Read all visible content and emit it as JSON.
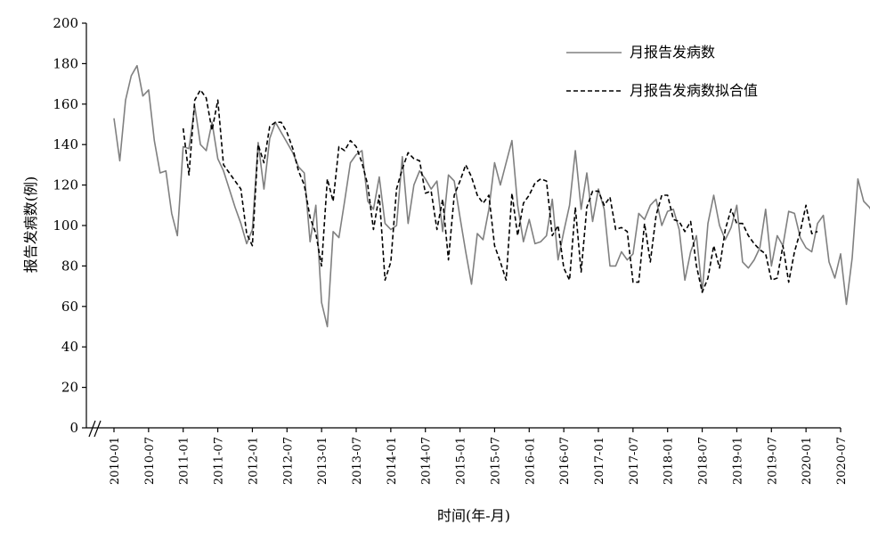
{
  "chart_data": {
    "type": "line",
    "xlabel": "时间(年-月)",
    "ylabel": "报告发病数(例)",
    "ylim": [
      0,
      200
    ],
    "yticks": [
      0,
      20,
      40,
      60,
      80,
      100,
      120,
      140,
      160,
      180,
      200
    ],
    "xticks": [
      "2010-01",
      "2010-07",
      "2011-01",
      "2011-07",
      "2012-01",
      "2012-07",
      "2013-01",
      "2013-07",
      "2014-01",
      "2014-07",
      "2015-01",
      "2015-07",
      "2016-01",
      "2016-07",
      "2017-01",
      "2017-07",
      "2018-01",
      "2018-07",
      "2019-01",
      "2019-07",
      "2020-01",
      "2020-07"
    ],
    "x_start": "2010-01",
    "grid": false,
    "legend_position": "top-right",
    "series": [
      {
        "name": "月报告发病数",
        "style": "solid",
        "color": "#808080",
        "start": "2010-01",
        "values": [
          153,
          132,
          162,
          174,
          179,
          164,
          167,
          142,
          126,
          127,
          106,
          95,
          139,
          138,
          159,
          140,
          137,
          151,
          133,
          127,
          118,
          109,
          101,
          91,
          98,
          141,
          118,
          143,
          151,
          146,
          141,
          136,
          129,
          126,
          92,
          110,
          62,
          50,
          97,
          94,
          112,
          131,
          135,
          137,
          112,
          108,
          124,
          101,
          98,
          100,
          134,
          101,
          120,
          127,
          123,
          118,
          122,
          97,
          125,
          122,
          104,
          87,
          71,
          96,
          93,
          108,
          131,
          120,
          131,
          142,
          110,
          92,
          103,
          91,
          92,
          95,
          113,
          83,
          97,
          110,
          137,
          108,
          126,
          102,
          118,
          108,
          80,
          80,
          87,
          83,
          86,
          106,
          103,
          110,
          113,
          100,
          107,
          108,
          98,
          73,
          87,
          95,
          67,
          101,
          115,
          100,
          93,
          99,
          110,
          82,
          79,
          83,
          89,
          108,
          80,
          95,
          90,
          107,
          106,
          94,
          89,
          87,
          101,
          105,
          82,
          74,
          86,
          61,
          84,
          123,
          112,
          109,
          104
        ]
      },
      {
        "name": "月报告发病数拟合值",
        "style": "dashed",
        "color": "#000000",
        "start": "2011-01",
        "values": [
          148,
          125,
          162,
          167,
          163,
          147,
          162,
          130,
          126,
          122,
          118,
          96,
          90,
          140,
          131,
          149,
          151,
          151,
          146,
          138,
          127,
          120,
          104,
          96,
          80,
          123,
          112,
          139,
          137,
          142,
          139,
          131,
          120,
          98,
          115,
          73,
          82,
          118,
          128,
          136,
          133,
          132,
          116,
          117,
          98,
          113,
          83,
          115,
          122,
          130,
          124,
          115,
          111,
          115,
          90,
          82,
          73,
          116,
          95,
          111,
          115,
          121,
          123,
          122,
          95,
          100,
          79,
          73,
          109,
          77,
          109,
          117,
          117,
          110,
          114,
          98,
          99,
          97,
          72,
          72,
          101,
          82,
          105,
          115,
          115,
          103,
          102,
          97,
          102,
          80,
          67,
          74,
          90,
          79,
          98,
          108,
          101,
          101,
          95,
          91,
          88,
          86,
          73,
          74,
          90,
          72,
          87,
          97,
          110,
          96,
          97
        ]
      }
    ]
  }
}
